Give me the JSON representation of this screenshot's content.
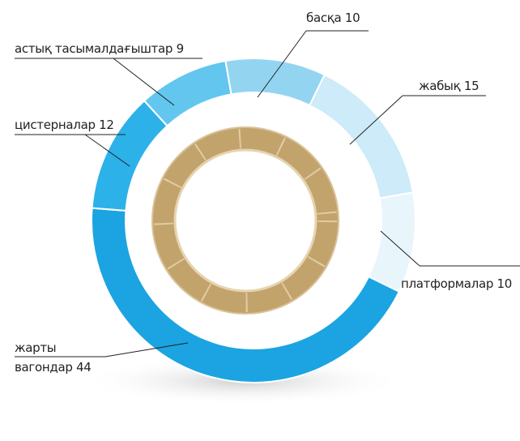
{
  "chart_data": {
    "type": "donut",
    "categories": [
      "басқа",
      "жабық",
      "платформалар",
      "жарты вагондар",
      "цистерналар",
      "астық тасымалдағыштар"
    ],
    "values": [
      10,
      15,
      10,
      44,
      12,
      9
    ],
    "colors": [
      "#93d5f1",
      "#cdebf8",
      "#e8f6fc",
      "#1ba4e1",
      "#2db1e9",
      "#62c6ef"
    ]
  }
}
